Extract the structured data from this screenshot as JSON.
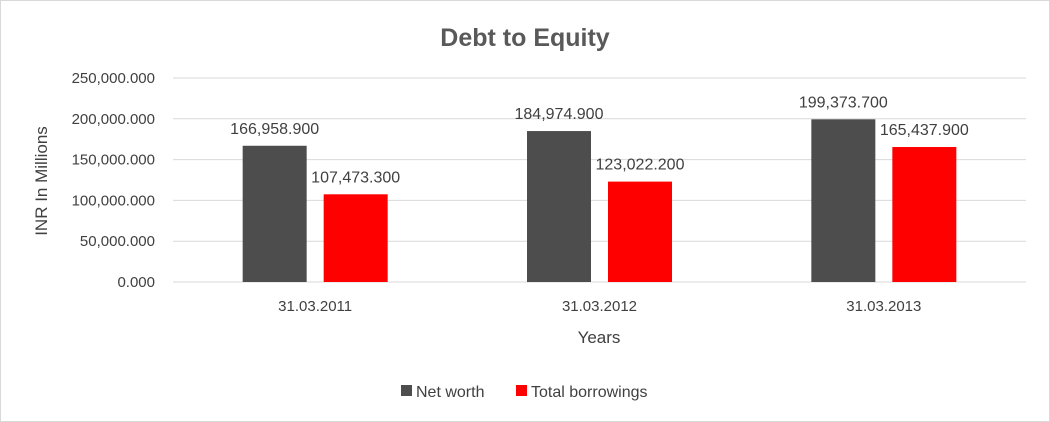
{
  "chart_data": {
    "type": "bar",
    "title": "Debt to Equity",
    "xlabel": "Years",
    "ylabel": "INR In Millions",
    "categories": [
      "31.03.2011",
      "31.03.2012",
      "31.03.2013"
    ],
    "series": [
      {
        "name": "Net worth",
        "color": "#4d4d4d",
        "values": [
          166958.9,
          184974.9,
          199373.7
        ],
        "labels": [
          "166,958.900",
          "184,974.900",
          "199,373.700"
        ]
      },
      {
        "name": "Total borrowings",
        "color": "#ff0000",
        "values": [
          107473.3,
          123022.2,
          165437.9
        ],
        "labels": [
          "107,473.300",
          "123,022.200",
          "165,437.900"
        ]
      }
    ],
    "ylim": [
      0,
      250000
    ],
    "yticks": [
      {
        "value": 0,
        "label": "0.000"
      },
      {
        "value": 50000,
        "label": "50,000.000"
      },
      {
        "value": 100000,
        "label": "100,000.000"
      },
      {
        "value": 150000,
        "label": "150,000.000"
      },
      {
        "value": 200000,
        "label": "200,000.000"
      },
      {
        "value": 250000,
        "label": "250,000.000"
      }
    ],
    "grid": true,
    "legend_position": "bottom",
    "gridline_color": "#d9d9d9"
  }
}
